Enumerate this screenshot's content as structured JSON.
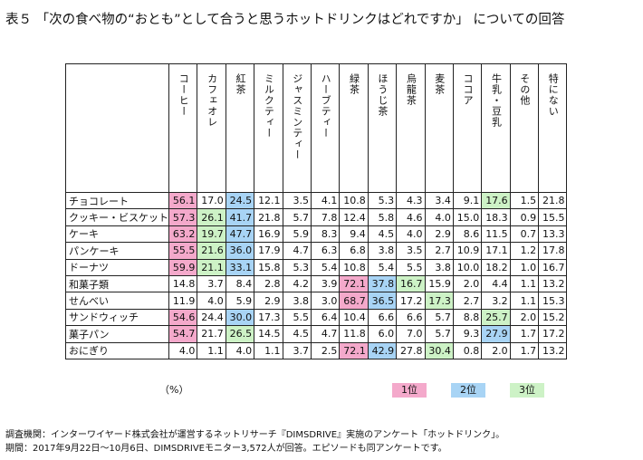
{
  "title": "表５ 「次の食べ物の“おとも”として合うと思うホットドリンクはどれですか」 についての回答",
  "columns": [
    "コーヒー",
    "カフェオレ",
    "紅茶",
    "ミルクティー",
    "ジャスミンティー",
    "ハーブティー",
    "緑茶",
    "ほうじ茶",
    "烏龍茶",
    "麦茶",
    "ココア",
    "牛乳・豆乳",
    "その他",
    "特にない"
  ],
  "rows": [
    {
      "label": "チョコレート",
      "values": [
        "56.1",
        "17.0",
        "24.5",
        "12.1",
        "3.5",
        "4.1",
        "10.8",
        "5.3",
        "4.3",
        "3.4",
        "9.1",
        "17.6",
        "1.5",
        "21.8"
      ],
      "ranks": [
        1,
        0,
        2,
        0,
        0,
        0,
        0,
        0,
        0,
        0,
        0,
        3,
        0,
        0
      ]
    },
    {
      "label": "クッキー・ビスケット",
      "values": [
        "57.3",
        "26.1",
        "41.7",
        "21.8",
        "5.7",
        "7.8",
        "12.4",
        "5.8",
        "4.6",
        "4.0",
        "15.0",
        "18.3",
        "0.9",
        "15.5"
      ],
      "ranks": [
        1,
        3,
        2,
        0,
        0,
        0,
        0,
        0,
        0,
        0,
        0,
        0,
        0,
        0
      ]
    },
    {
      "label": "ケーキ",
      "values": [
        "63.2",
        "19.7",
        "47.7",
        "16.9",
        "5.9",
        "8.3",
        "9.4",
        "4.5",
        "4.0",
        "2.9",
        "8.6",
        "11.5",
        "0.7",
        "13.3"
      ],
      "ranks": [
        1,
        3,
        2,
        0,
        0,
        0,
        0,
        0,
        0,
        0,
        0,
        0,
        0,
        0
      ]
    },
    {
      "label": "パンケーキ",
      "values": [
        "55.5",
        "21.6",
        "36.0",
        "17.9",
        "4.7",
        "6.3",
        "6.8",
        "3.8",
        "3.5",
        "2.7",
        "10.9",
        "17.1",
        "1.2",
        "17.8"
      ],
      "ranks": [
        1,
        3,
        2,
        0,
        0,
        0,
        0,
        0,
        0,
        0,
        0,
        0,
        0,
        0
      ]
    },
    {
      "label": "ドーナツ",
      "values": [
        "59.9",
        "21.1",
        "33.1",
        "15.8",
        "5.3",
        "5.4",
        "10.8",
        "5.4",
        "5.5",
        "3.8",
        "10.0",
        "18.2",
        "1.0",
        "16.7"
      ],
      "ranks": [
        1,
        3,
        2,
        0,
        0,
        0,
        0,
        0,
        0,
        0,
        0,
        0,
        0,
        0
      ]
    },
    {
      "label": "和菓子類",
      "values": [
        "14.8",
        "3.7",
        "8.4",
        "2.8",
        "4.2",
        "3.9",
        "72.1",
        "37.8",
        "16.7",
        "15.9",
        "2.0",
        "4.4",
        "1.1",
        "13.2"
      ],
      "ranks": [
        0,
        0,
        0,
        0,
        0,
        0,
        1,
        2,
        3,
        0,
        0,
        0,
        0,
        0
      ]
    },
    {
      "label": "せんべい",
      "values": [
        "11.9",
        "4.0",
        "5.9",
        "2.9",
        "3.8",
        "3.0",
        "68.7",
        "36.5",
        "17.2",
        "17.3",
        "2.7",
        "3.2",
        "1.1",
        "15.3"
      ],
      "ranks": [
        0,
        0,
        0,
        0,
        0,
        0,
        1,
        2,
        0,
        3,
        0,
        0,
        0,
        0
      ]
    },
    {
      "label": "サンドウィッチ",
      "values": [
        "54.6",
        "24.4",
        "30.0",
        "17.3",
        "5.5",
        "6.4",
        "10.4",
        "6.6",
        "6.6",
        "5.7",
        "8.8",
        "25.7",
        "2.0",
        "15.2"
      ],
      "ranks": [
        1,
        0,
        2,
        0,
        0,
        0,
        0,
        0,
        0,
        0,
        0,
        3,
        0,
        0
      ]
    },
    {
      "label": "菓子パン",
      "values": [
        "54.7",
        "21.7",
        "26.5",
        "14.5",
        "4.5",
        "4.7",
        "11.8",
        "6.0",
        "7.0",
        "5.7",
        "9.3",
        "27.9",
        "1.7",
        "17.2"
      ],
      "ranks": [
        1,
        0,
        3,
        0,
        0,
        0,
        0,
        0,
        0,
        0,
        0,
        2,
        0,
        0
      ]
    },
    {
      "label": "おにぎり",
      "values": [
        "4.0",
        "1.1",
        "4.0",
        "1.1",
        "3.7",
        "2.5",
        "72.1",
        "42.9",
        "27.8",
        "30.4",
        "0.8",
        "2.0",
        "1.7",
        "13.2"
      ],
      "ranks": [
        0,
        0,
        0,
        0,
        0,
        0,
        1,
        2,
        0,
        3,
        0,
        0,
        0,
        0
      ]
    }
  ],
  "unit": "（%）",
  "legend": {
    "first": "1位",
    "second": "2位",
    "third": "3位"
  },
  "colors": {
    "first": "#f4a9cb",
    "second": "#a8d4f5",
    "third": "#cdf2c6"
  },
  "notes": {
    "line1": "調査機関：インターワイヤード株式会社が運営するネットリサーチ『DIMSDRIVE』実施のアンケート「ホットドリンク」。",
    "line2": "期間：2017年9月22日～10月6日、DIMSDRIVEモニター3,572人が回答。エピソードも同アンケートです。"
  }
}
